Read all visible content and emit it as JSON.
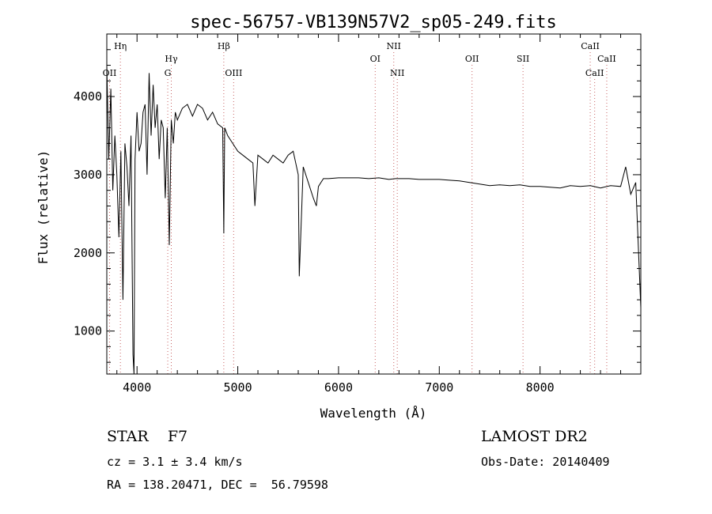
{
  "chart_data": {
    "type": "line",
    "title": "spec-56757-VB139N57V2_sp05-249.fits",
    "xlabel": "Wavelength (Å)",
    "ylabel": "Flux (relative)",
    "xlim": [
      3700,
      9000
    ],
    "ylim": [
      450,
      4800
    ],
    "xticks": [
      4000,
      5000,
      6000,
      7000,
      8000
    ],
    "yticks": [
      1000,
      2000,
      3000,
      4000
    ],
    "grid": false,
    "series": [
      {
        "x": [
          3700,
          3720,
          3740,
          3760,
          3780,
          3800,
          3820,
          3840,
          3860,
          3880,
          3900,
          3920,
          3940,
          3960,
          3970,
          3980,
          4000,
          4020,
          4040,
          4060,
          4080,
          4100,
          4120,
          4140,
          4160,
          4180,
          4200,
          4220,
          4240,
          4260,
          4280,
          4300,
          4320,
          4340,
          4360,
          4380,
          4400,
          4450,
          4500,
          4550,
          4600,
          4650,
          4700,
          4750,
          4800,
          4850,
          4861,
          4870,
          4900,
          4950,
          5000,
          5050,
          5100,
          5150,
          5170,
          5200,
          5250,
          5300,
          5350,
          5400,
          5450,
          5500,
          5550,
          5600,
          5610,
          5650,
          5700,
          5750,
          5780,
          5800,
          5850,
          5900,
          6000,
          6100,
          6200,
          6300,
          6400,
          6500,
          6563,
          6600,
          6700,
          6800,
          6900,
          7000,
          7100,
          7200,
          7300,
          7400,
          7500,
          7600,
          7700,
          7800,
          7900,
          8000,
          8100,
          8200,
          8300,
          8400,
          8500,
          8600,
          8700,
          8800,
          8850,
          8900,
          8950,
          9000
        ],
        "y": [
          4400,
          3200,
          4100,
          2800,
          3500,
          3000,
          2200,
          3300,
          1400,
          3400,
          3100,
          2600,
          3500,
          700,
          450,
          3200,
          3800,
          3300,
          3400,
          3800,
          3900,
          3000,
          4300,
          3500,
          4150,
          3600,
          3900,
          3200,
          3700,
          3600,
          2700,
          3600,
          2100,
          3700,
          3400,
          3800,
          3700,
          3850,
          3900,
          3750,
          3900,
          3850,
          3700,
          3800,
          3650,
          3600,
          2250,
          3600,
          3500,
          3400,
          3300,
          3250,
          3200,
          3150,
          2600,
          3250,
          3200,
          3150,
          3250,
          3200,
          3150,
          3250,
          3300,
          3000,
          1700,
          3100,
          2900,
          2700,
          2600,
          2850,
          2950,
          2950,
          2960,
          2960,
          2960,
          2950,
          2960,
          2940,
          2950,
          2950,
          2950,
          2940,
          2940,
          2940,
          2930,
          2920,
          2900,
          2880,
          2860,
          2870,
          2860,
          2870,
          2850,
          2850,
          2840,
          2830,
          2860,
          2850,
          2860,
          2830,
          2860,
          2850,
          3100,
          2750,
          2900,
          1300
        ]
      }
    ],
    "lines": [
      {
        "label": "OII",
        "x": 3727,
        "row": 3
      },
      {
        "label": "Hη",
        "x": 3835,
        "row": 1
      },
      {
        "label": "Hγ",
        "x": 4340,
        "row": 2
      },
      {
        "label": "G",
        "x": 4305,
        "row": 3
      },
      {
        "label": "Hβ",
        "x": 4861,
        "row": 1
      },
      {
        "label": "OIII",
        "x": 4959,
        "row": 3
      },
      {
        "label": "OI",
        "x": 6364,
        "row": 2
      },
      {
        "label": "NII",
        "x": 6548,
        "row": 1
      },
      {
        "label": "NII",
        "x": 6583,
        "row": 3
      },
      {
        "label": "OII",
        "x": 7325,
        "row": 2
      },
      {
        "label": "SII",
        "x": 7831,
        "row": 2
      },
      {
        "label": "CaII",
        "x": 8498,
        "row": 1
      },
      {
        "label": "CaII",
        "x": 8542,
        "row": 3
      },
      {
        "label": "CaII",
        "x": 8662,
        "row": 2
      }
    ]
  },
  "info": {
    "class_line": "STAR    F7",
    "survey": "LAMOST DR2",
    "cz": "cz = 3.1 ± 3.4 km/s",
    "obs_date": "Obs-Date: 20140409",
    "radec": "RA = 138.20471, DEC =  56.79598"
  }
}
